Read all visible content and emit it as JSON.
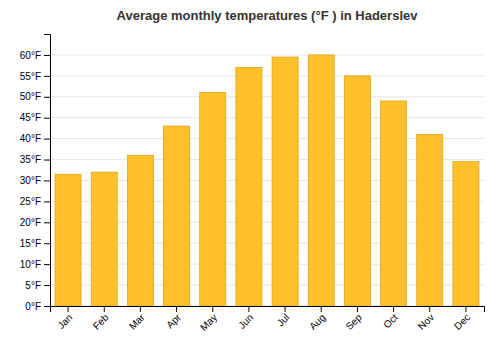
{
  "chart_data": {
    "type": "bar",
    "title": "Average monthly temperatures (°F ) in Haderslev",
    "categories": [
      "Jan",
      "Feb",
      "Mar",
      "Apr",
      "May",
      "Jun",
      "Jul",
      "Aug",
      "Sep",
      "Oct",
      "Nov",
      "Dec"
    ],
    "values": [
      31.5,
      32.0,
      36.0,
      43.0,
      51.0,
      57.0,
      59.5,
      60.0,
      55.0,
      49.0,
      41.0,
      34.5
    ],
    "color": "#FFC02A",
    "ylim": [
      0,
      65
    ],
    "yticks": [
      {
        "value": 0,
        "label": "0°F"
      },
      {
        "value": 5,
        "label": "5°F"
      },
      {
        "value": 10,
        "label": "10°F"
      },
      {
        "value": 15,
        "label": "15°F"
      },
      {
        "value": 20,
        "label": "20°F"
      },
      {
        "value": 25,
        "label": "25°F"
      },
      {
        "value": 30,
        "label": "30°F"
      },
      {
        "value": 35,
        "label": "35°F"
      },
      {
        "value": 40,
        "label": "40°F"
      },
      {
        "value": 45,
        "label": "45°F"
      },
      {
        "value": 50,
        "label": "50°F"
      },
      {
        "value": 55,
        "label": "55°F"
      },
      {
        "value": 60,
        "label": "60°F"
      }
    ],
    "grid": true
  }
}
